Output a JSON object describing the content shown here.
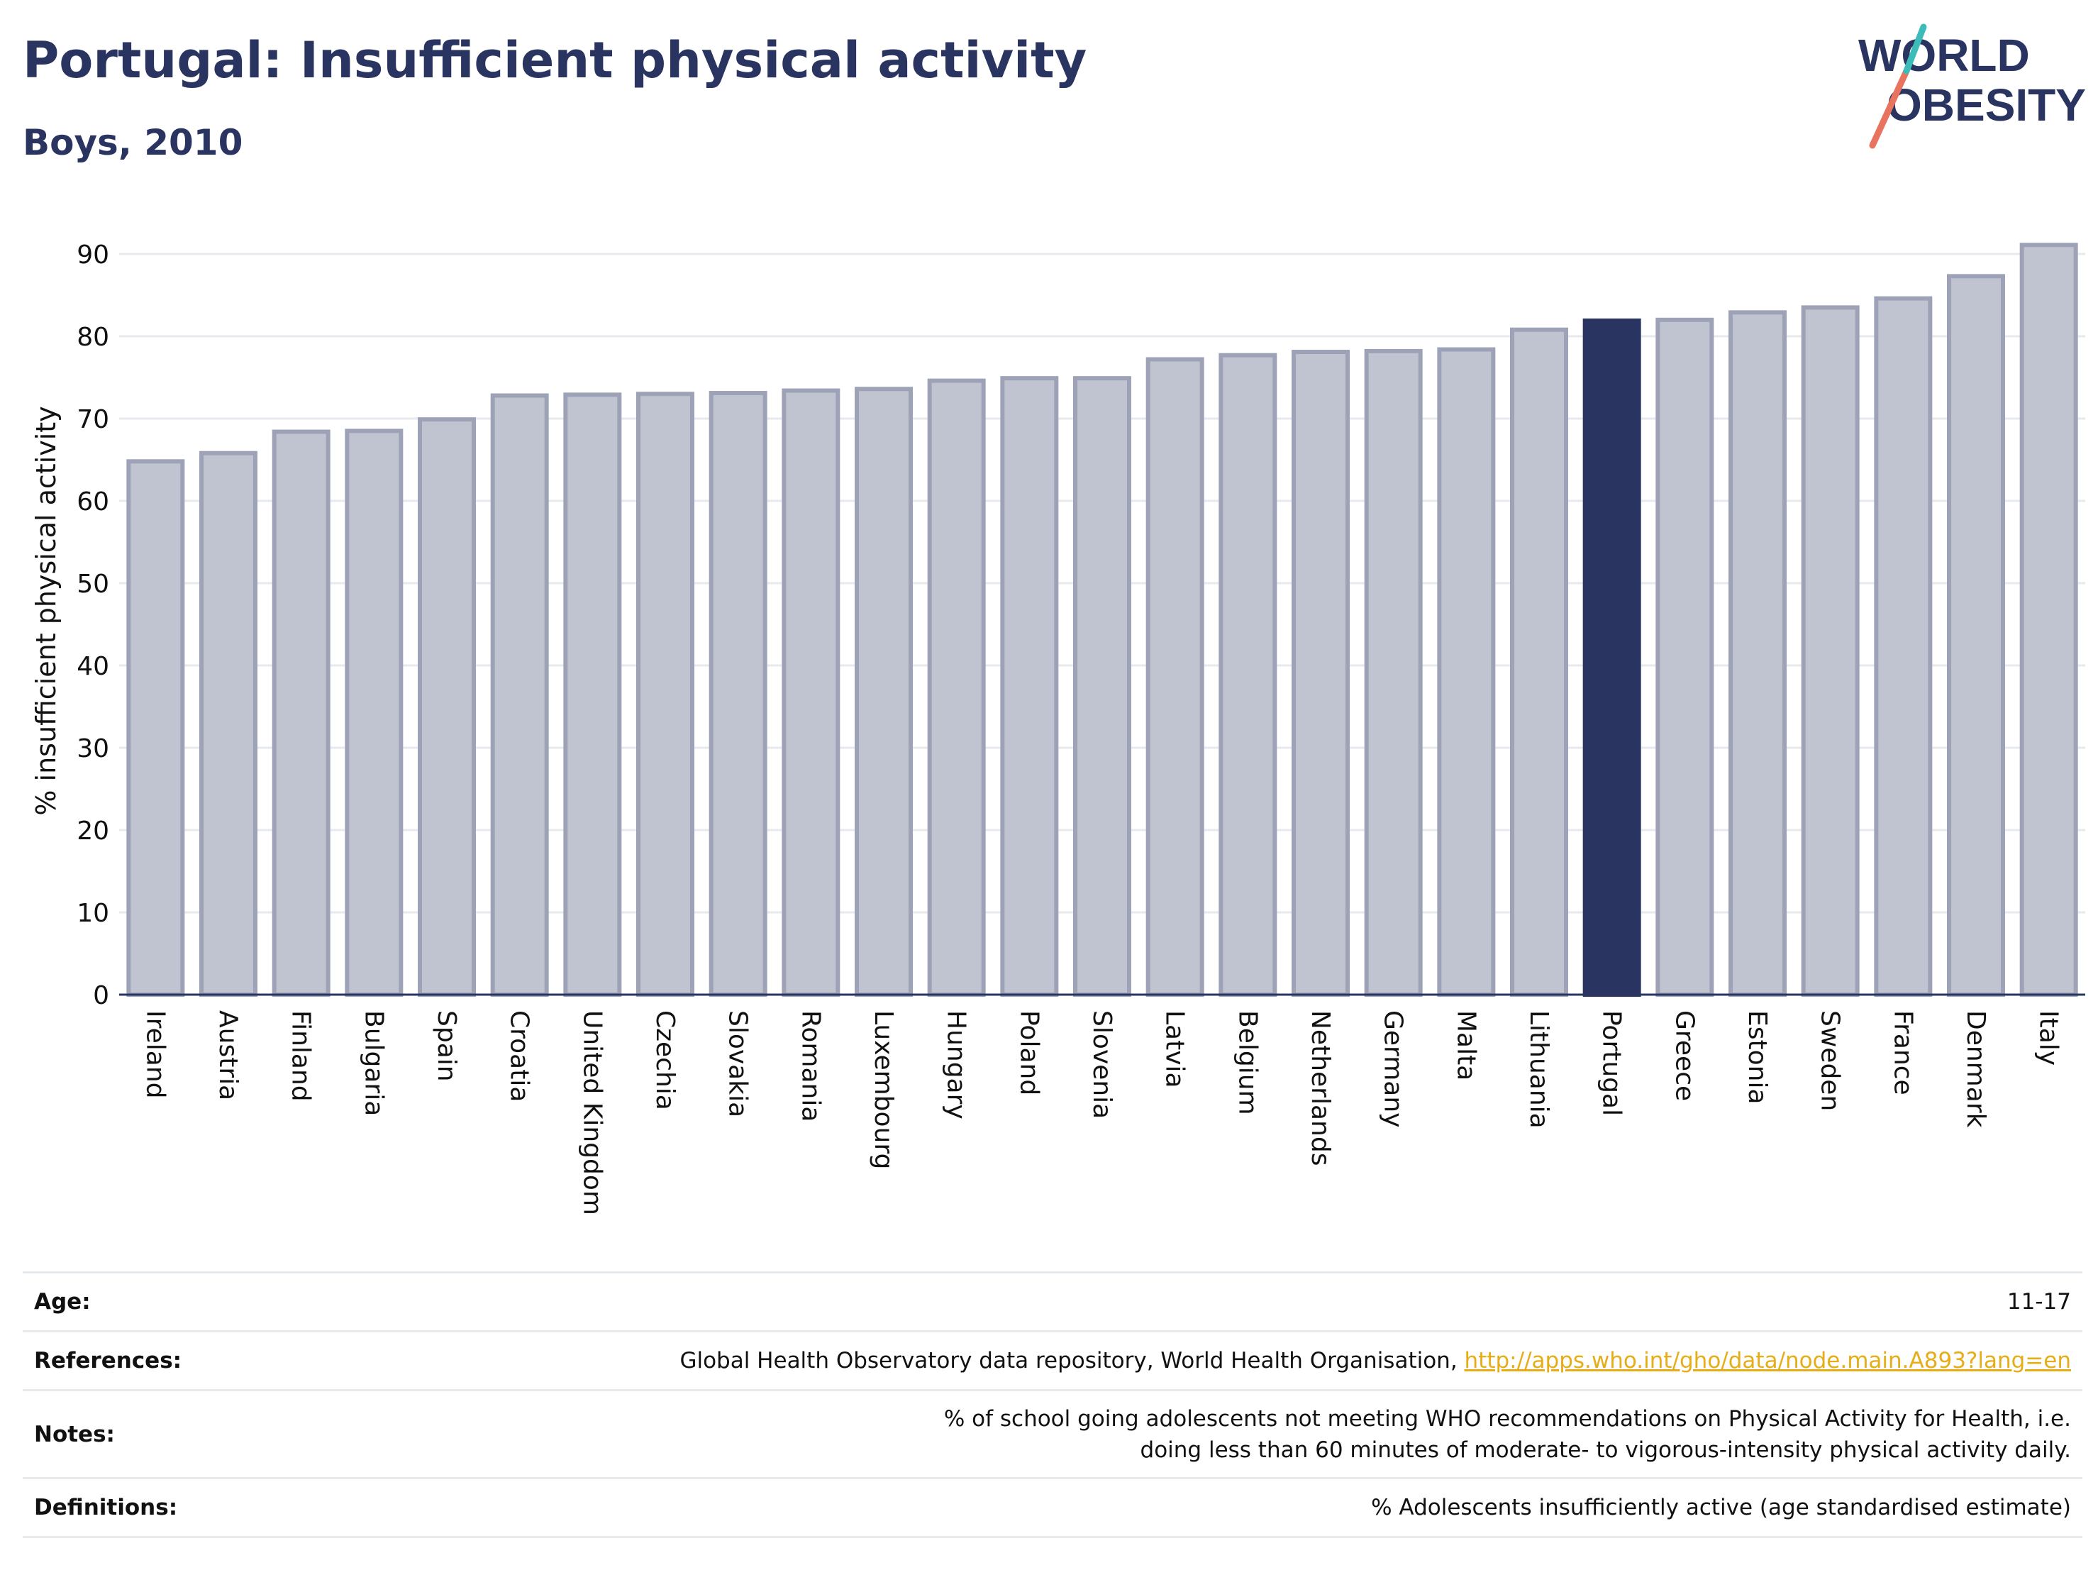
{
  "header": {
    "title": "Portugal: Insufficient physical activity",
    "subtitle": "Boys, 2010"
  },
  "logo": {
    "line1": "WORLD",
    "line2": "OBESITY",
    "colors": [
      "#2a3460",
      "#e8745f",
      "#3bbcb9"
    ]
  },
  "chart_data": {
    "type": "bar",
    "title": "Portugal: Insufficient physical activity",
    "subtitle": "Boys, 2010",
    "ylabel": "% insufficient physical activity",
    "xlabel": "",
    "ylim": [
      0,
      95
    ],
    "yticks": [
      0,
      10,
      20,
      30,
      40,
      50,
      60,
      70,
      80,
      90
    ],
    "grid": true,
    "categories": [
      "Ireland",
      "Austria",
      "Finland",
      "Bulgaria",
      "Spain",
      "Croatia",
      "United Kingdom",
      "Czechia",
      "Slovakia",
      "Romania",
      "Luxembourg",
      "Hungary",
      "Poland",
      "Slovenia",
      "Latvia",
      "Belgium",
      "Netherlands",
      "Germany",
      "Malta",
      "Lithuania",
      "Portugal",
      "Greece",
      "Estonia",
      "Sweden",
      "France",
      "Denmark",
      "Italy"
    ],
    "values": [
      64.8,
      65.8,
      68.4,
      68.5,
      69.9,
      72.8,
      72.9,
      73.0,
      73.1,
      73.4,
      73.6,
      74.6,
      74.9,
      74.9,
      77.2,
      77.7,
      78.1,
      78.2,
      78.4,
      80.8,
      81.9,
      82.0,
      82.9,
      83.5,
      84.6,
      87.3,
      91.1
    ],
    "highlight": "Portugal",
    "colors": {
      "bar": "#c0c3d0",
      "bar_border": "#9da2b7",
      "highlight": "#2a3460",
      "grid": "#e6e9ee",
      "axis": "#2a3460"
    }
  },
  "info_table": [
    {
      "key": "Age:",
      "value": "11-17"
    },
    {
      "key": "References:",
      "value": "Global Health Observatory data repository, World Health Organisation,",
      "link": "http://apps.who.int/gho/data/node.main.A893?lang=en"
    },
    {
      "key": "Notes:",
      "value": "% of school going adolescents not meeting WHO recommendations on Physical Activity for Health, i.e. doing less than 60 minutes of moderate- to vigorous-intensity physical activity daily."
    },
    {
      "key": "Definitions:",
      "value": "% Adolescents insufficiently active (age standardised estimate)"
    }
  ]
}
